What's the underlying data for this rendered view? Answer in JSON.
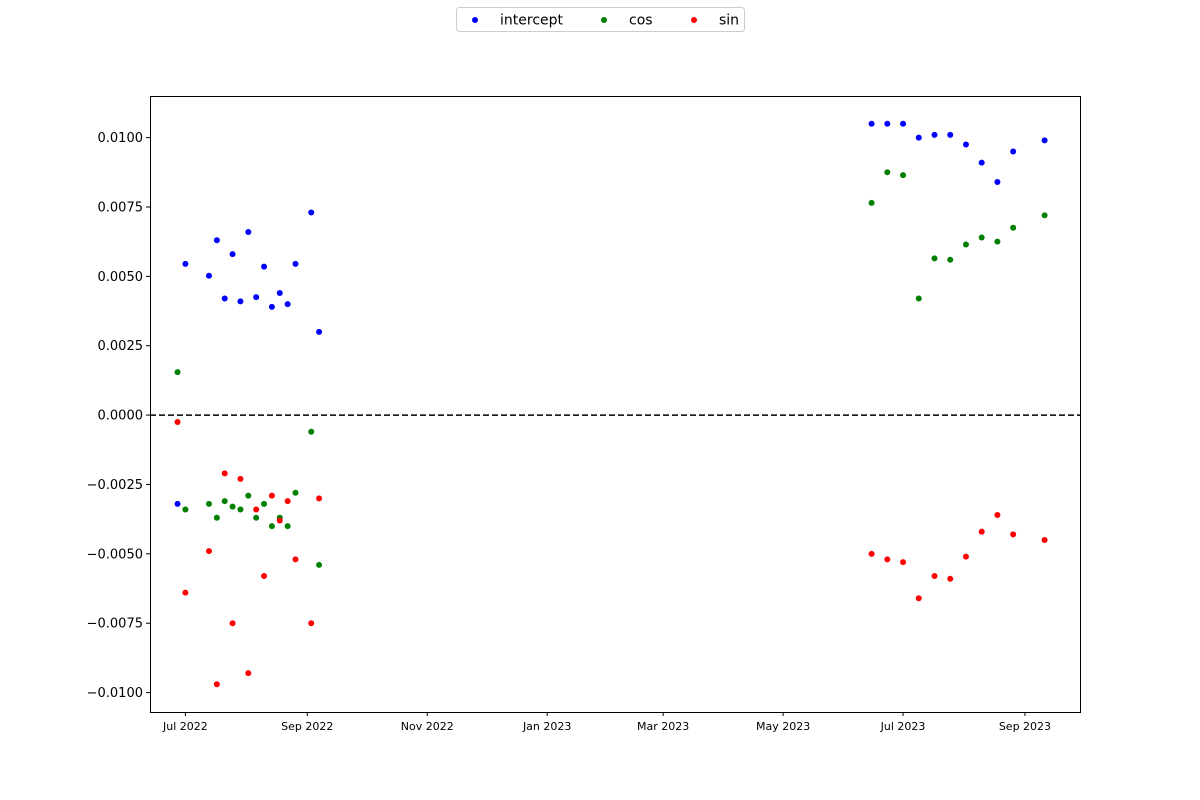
{
  "chart_data": {
    "type": "scatter",
    "x_axis_type": "date",
    "xlim": [
      "2022-06-13",
      "2023-09-29"
    ],
    "ylim": [
      -0.0107,
      0.0115
    ],
    "x_ticks": [
      {
        "date": "2022-07-01",
        "label": "Jul 2022"
      },
      {
        "date": "2022-09-01",
        "label": "Sep 2022"
      },
      {
        "date": "2022-11-01",
        "label": "Nov 2022"
      },
      {
        "date": "2023-01-01",
        "label": "Jan 2023"
      },
      {
        "date": "2023-03-01",
        "label": "Mar 2023"
      },
      {
        "date": "2023-05-01",
        "label": "May 2023"
      },
      {
        "date": "2023-07-01",
        "label": "Jul 2023"
      },
      {
        "date": "2023-09-01",
        "label": "Sep 2023"
      }
    ],
    "y_ticks": [
      {
        "value": 0.01,
        "label": "0.0100"
      },
      {
        "value": 0.0075,
        "label": "0.0075"
      },
      {
        "value": 0.005,
        "label": "0.0050"
      },
      {
        "value": 0.0025,
        "label": "0.0025"
      },
      {
        "value": 0.0,
        "label": "0.0000"
      },
      {
        "value": -0.0025,
        "label": "−0.0025"
      },
      {
        "value": -0.005,
        "label": "−0.0050"
      },
      {
        "value": -0.0075,
        "label": "−0.0075"
      },
      {
        "value": -0.01,
        "label": "−0.0100"
      }
    ],
    "reference_line": {
      "y": 0.0,
      "style": "dashed",
      "color": "#000000"
    },
    "legend": {
      "placement": "top-center",
      "columns": 3
    },
    "grid": false,
    "series": [
      {
        "name": "intercept",
        "color": "#0000ff",
        "points": [
          {
            "x": "2022-06-27",
            "y": -0.0032
          },
          {
            "x": "2022-07-01",
            "y": 0.00545
          },
          {
            "x": "2022-07-13",
            "y": 0.00502
          },
          {
            "x": "2022-07-17",
            "y": 0.0063
          },
          {
            "x": "2022-07-21",
            "y": 0.0042
          },
          {
            "x": "2022-07-25",
            "y": 0.0058
          },
          {
            "x": "2022-07-29",
            "y": 0.0041
          },
          {
            "x": "2022-08-02",
            "y": 0.0066
          },
          {
            "x": "2022-08-06",
            "y": 0.00425
          },
          {
            "x": "2022-08-10",
            "y": 0.00535
          },
          {
            "x": "2022-08-14",
            "y": 0.0039
          },
          {
            "x": "2022-08-18",
            "y": 0.0044
          },
          {
            "x": "2022-08-22",
            "y": 0.004
          },
          {
            "x": "2022-08-26",
            "y": 0.00545
          },
          {
            "x": "2022-09-03",
            "y": 0.0073
          },
          {
            "x": "2022-09-07",
            "y": 0.003
          },
          {
            "x": "2023-06-15",
            "y": 0.0105
          },
          {
            "x": "2023-06-23",
            "y": 0.0105
          },
          {
            "x": "2023-07-01",
            "y": 0.0105
          },
          {
            "x": "2023-07-09",
            "y": 0.01
          },
          {
            "x": "2023-07-17",
            "y": 0.0101
          },
          {
            "x": "2023-07-25",
            "y": 0.0101
          },
          {
            "x": "2023-08-02",
            "y": 0.00975
          },
          {
            "x": "2023-08-10",
            "y": 0.0091
          },
          {
            "x": "2023-08-18",
            "y": 0.0084
          },
          {
            "x": "2023-08-26",
            "y": 0.0095
          },
          {
            "x": "2023-09-11",
            "y": 0.0099
          }
        ]
      },
      {
        "name": "cos",
        "color": "#008000",
        "points": [
          {
            "x": "2022-06-27",
            "y": 0.00155
          },
          {
            "x": "2022-07-01",
            "y": -0.0034
          },
          {
            "x": "2022-07-13",
            "y": -0.0032
          },
          {
            "x": "2022-07-17",
            "y": -0.0037
          },
          {
            "x": "2022-07-21",
            "y": -0.0031
          },
          {
            "x": "2022-07-25",
            "y": -0.0033
          },
          {
            "x": "2022-07-29",
            "y": -0.0034
          },
          {
            "x": "2022-08-02",
            "y": -0.0029
          },
          {
            "x": "2022-08-06",
            "y": -0.0037
          },
          {
            "x": "2022-08-10",
            "y": -0.0032
          },
          {
            "x": "2022-08-14",
            "y": -0.004
          },
          {
            "x": "2022-08-18",
            "y": -0.0037
          },
          {
            "x": "2022-08-22",
            "y": -0.004
          },
          {
            "x": "2022-08-26",
            "y": -0.0028
          },
          {
            "x": "2022-09-03",
            "y": -0.0006
          },
          {
            "x": "2022-09-07",
            "y": -0.0054
          },
          {
            "x": "2023-06-15",
            "y": 0.00765
          },
          {
            "x": "2023-06-23",
            "y": 0.00875
          },
          {
            "x": "2023-07-01",
            "y": 0.00865
          },
          {
            "x": "2023-07-09",
            "y": 0.0042
          },
          {
            "x": "2023-07-17",
            "y": 0.00565
          },
          {
            "x": "2023-07-25",
            "y": 0.0056
          },
          {
            "x": "2023-08-02",
            "y": 0.00615
          },
          {
            "x": "2023-08-10",
            "y": 0.0064
          },
          {
            "x": "2023-08-18",
            "y": 0.00625
          },
          {
            "x": "2023-08-26",
            "y": 0.00675
          },
          {
            "x": "2023-09-11",
            "y": 0.0072
          }
        ]
      },
      {
        "name": "sin",
        "color": "#ff0000",
        "points": [
          {
            "x": "2022-06-27",
            "y": -0.00025
          },
          {
            "x": "2022-07-01",
            "y": -0.0064
          },
          {
            "x": "2022-07-13",
            "y": -0.0049
          },
          {
            "x": "2022-07-17",
            "y": -0.0097
          },
          {
            "x": "2022-07-21",
            "y": -0.0021
          },
          {
            "x": "2022-07-25",
            "y": -0.0075
          },
          {
            "x": "2022-07-29",
            "y": -0.0023
          },
          {
            "x": "2022-08-02",
            "y": -0.0093
          },
          {
            "x": "2022-08-06",
            "y": -0.0034
          },
          {
            "x": "2022-08-10",
            "y": -0.0058
          },
          {
            "x": "2022-08-14",
            "y": -0.0029
          },
          {
            "x": "2022-08-18",
            "y": -0.0038
          },
          {
            "x": "2022-08-22",
            "y": -0.0031
          },
          {
            "x": "2022-08-26",
            "y": -0.0052
          },
          {
            "x": "2022-09-03",
            "y": -0.0075
          },
          {
            "x": "2022-09-07",
            "y": -0.003
          },
          {
            "x": "2023-06-15",
            "y": -0.005
          },
          {
            "x": "2023-06-23",
            "y": -0.0052
          },
          {
            "x": "2023-07-01",
            "y": -0.0053
          },
          {
            "x": "2023-07-09",
            "y": -0.0066
          },
          {
            "x": "2023-07-17",
            "y": -0.0058
          },
          {
            "x": "2023-07-25",
            "y": -0.0059
          },
          {
            "x": "2023-08-02",
            "y": -0.0051
          },
          {
            "x": "2023-08-10",
            "y": -0.0042
          },
          {
            "x": "2023-08-18",
            "y": -0.0036
          },
          {
            "x": "2023-08-26",
            "y": -0.0043
          },
          {
            "x": "2023-09-11",
            "y": -0.0045
          }
        ]
      }
    ]
  }
}
